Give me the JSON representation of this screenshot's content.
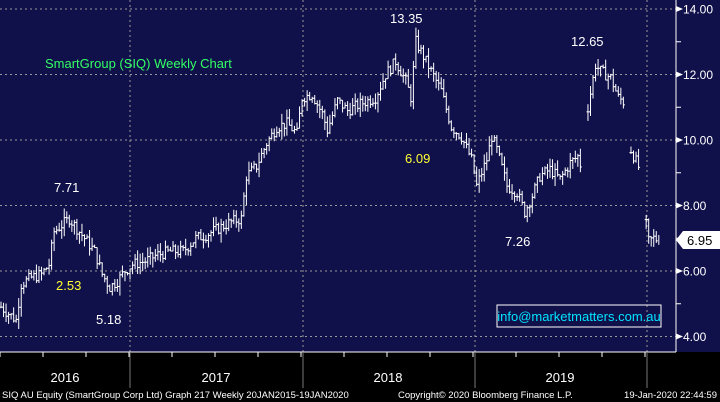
{
  "chart_data": {
    "type": "line",
    "style": "ohlc-bars",
    "title": "SmartGroup (SIQ) Weekly Chart",
    "x_unit": "weeks since 20JAN2015",
    "y_ticks": [
      "4.00",
      "6.00",
      "8.00",
      "10.00",
      "12.00",
      "14.00"
    ],
    "ylim": [
      3.5,
      14.2
    ],
    "x_labels": [
      "2016",
      "2017",
      "2018",
      "2019"
    ],
    "last_price": "6.95",
    "grid": true,
    "series": [
      {
        "name": "SIQ AU Equity",
        "points": [
          [
            0,
            4.9
          ],
          [
            3,
            4.7
          ],
          [
            6,
            4.5
          ],
          [
            8,
            5.6
          ],
          [
            12,
            5.8
          ],
          [
            16,
            5.9
          ],
          [
            19,
            6.2
          ],
          [
            21,
            7.2
          ],
          [
            24,
            7.4
          ],
          [
            27,
            7.6
          ],
          [
            30,
            7.3
          ],
          [
            33,
            7.0
          ],
          [
            37,
            6.6
          ],
          [
            40,
            5.9
          ],
          [
            43,
            5.5
          ],
          [
            46,
            5.7
          ],
          [
            49,
            6.0
          ],
          [
            52,
            6.2
          ],
          [
            57,
            6.3
          ],
          [
            62,
            6.5
          ],
          [
            67,
            6.6
          ],
          [
            72,
            6.6
          ],
          [
            77,
            7.0
          ],
          [
            81,
            7.1
          ],
          [
            86,
            7.3
          ],
          [
            91,
            7.5
          ],
          [
            95,
            7.6
          ],
          [
            97,
            8.9
          ],
          [
            101,
            9.2
          ],
          [
            105,
            9.9
          ],
          [
            109,
            10.4
          ],
          [
            113,
            10.5
          ],
          [
            117,
            10.2
          ],
          [
            119,
            11.3
          ],
          [
            123,
            11.4
          ],
          [
            127,
            10.8
          ],
          [
            129,
            10.3
          ],
          [
            133,
            11.2
          ],
          [
            137,
            10.9
          ],
          [
            142,
            11.1
          ],
          [
            148,
            11.3
          ],
          [
            152,
            12.0
          ],
          [
            156,
            12.4
          ],
          [
            160,
            11.8
          ],
          [
            162,
            11.3
          ],
          [
            164,
            13.0
          ],
          [
            166,
            12.7
          ],
          [
            170,
            12.1
          ],
          [
            174,
            11.5
          ],
          [
            178,
            10.4
          ],
          [
            182,
            10.1
          ],
          [
            186,
            9.4
          ],
          [
            188,
            8.6
          ],
          [
            192,
            9.4
          ],
          [
            194,
            10.1
          ],
          [
            196,
            9.7
          ],
          [
            200,
            8.6
          ],
          [
            204,
            8.4
          ],
          [
            207,
            7.8
          ],
          [
            210,
            8.3
          ],
          [
            213,
            8.9
          ],
          [
            217,
            9.1
          ],
          [
            221,
            8.8
          ],
          [
            225,
            9.3
          ],
          [
            228,
            9.5
          ],
          [
            230,
            9.0
          ],
          [
            231,
            null
          ],
          [
            232,
            11.0
          ],
          [
            235,
            12.3
          ],
          [
            237,
            12.1
          ],
          [
            241,
            11.9
          ],
          [
            244,
            11.3
          ],
          [
            247,
            11.1
          ],
          [
            248,
            null
          ],
          [
            249,
            9.7
          ],
          [
            253,
            9.0
          ],
          [
            254,
            null
          ],
          [
            255,
            7.4
          ],
          [
            256,
            6.9
          ],
          [
            258,
            7.0
          ],
          [
            260,
            6.95
          ]
        ]
      }
    ],
    "annotations": [
      {
        "text": "7.71",
        "color": "#ffffff"
      },
      {
        "text": "2.53",
        "color": "#ffff33"
      },
      {
        "text": "5.18",
        "color": "#ffffff"
      },
      {
        "text": "13.35",
        "color": "#ffffff"
      },
      {
        "text": "6.09",
        "color": "#ffff33"
      },
      {
        "text": "12.65",
        "color": "#ffffff"
      },
      {
        "text": "7.26",
        "color": "#ffffff"
      }
    ],
    "watermark": "info@marketmatters.com.au"
  },
  "footer": {
    "left": "SIQ AU Equity (SmartGroup Corp Ltd) Graph 217  Weekly 20JAN2015-19JAN2020",
    "center": "Copyright© 2020 Bloomberg Finance L.P.",
    "right": "19-Jan-2020 22:44:59"
  },
  "colors": {
    "background": "#10104a",
    "title": "#33ff66",
    "watermark": "#00e5ff"
  }
}
